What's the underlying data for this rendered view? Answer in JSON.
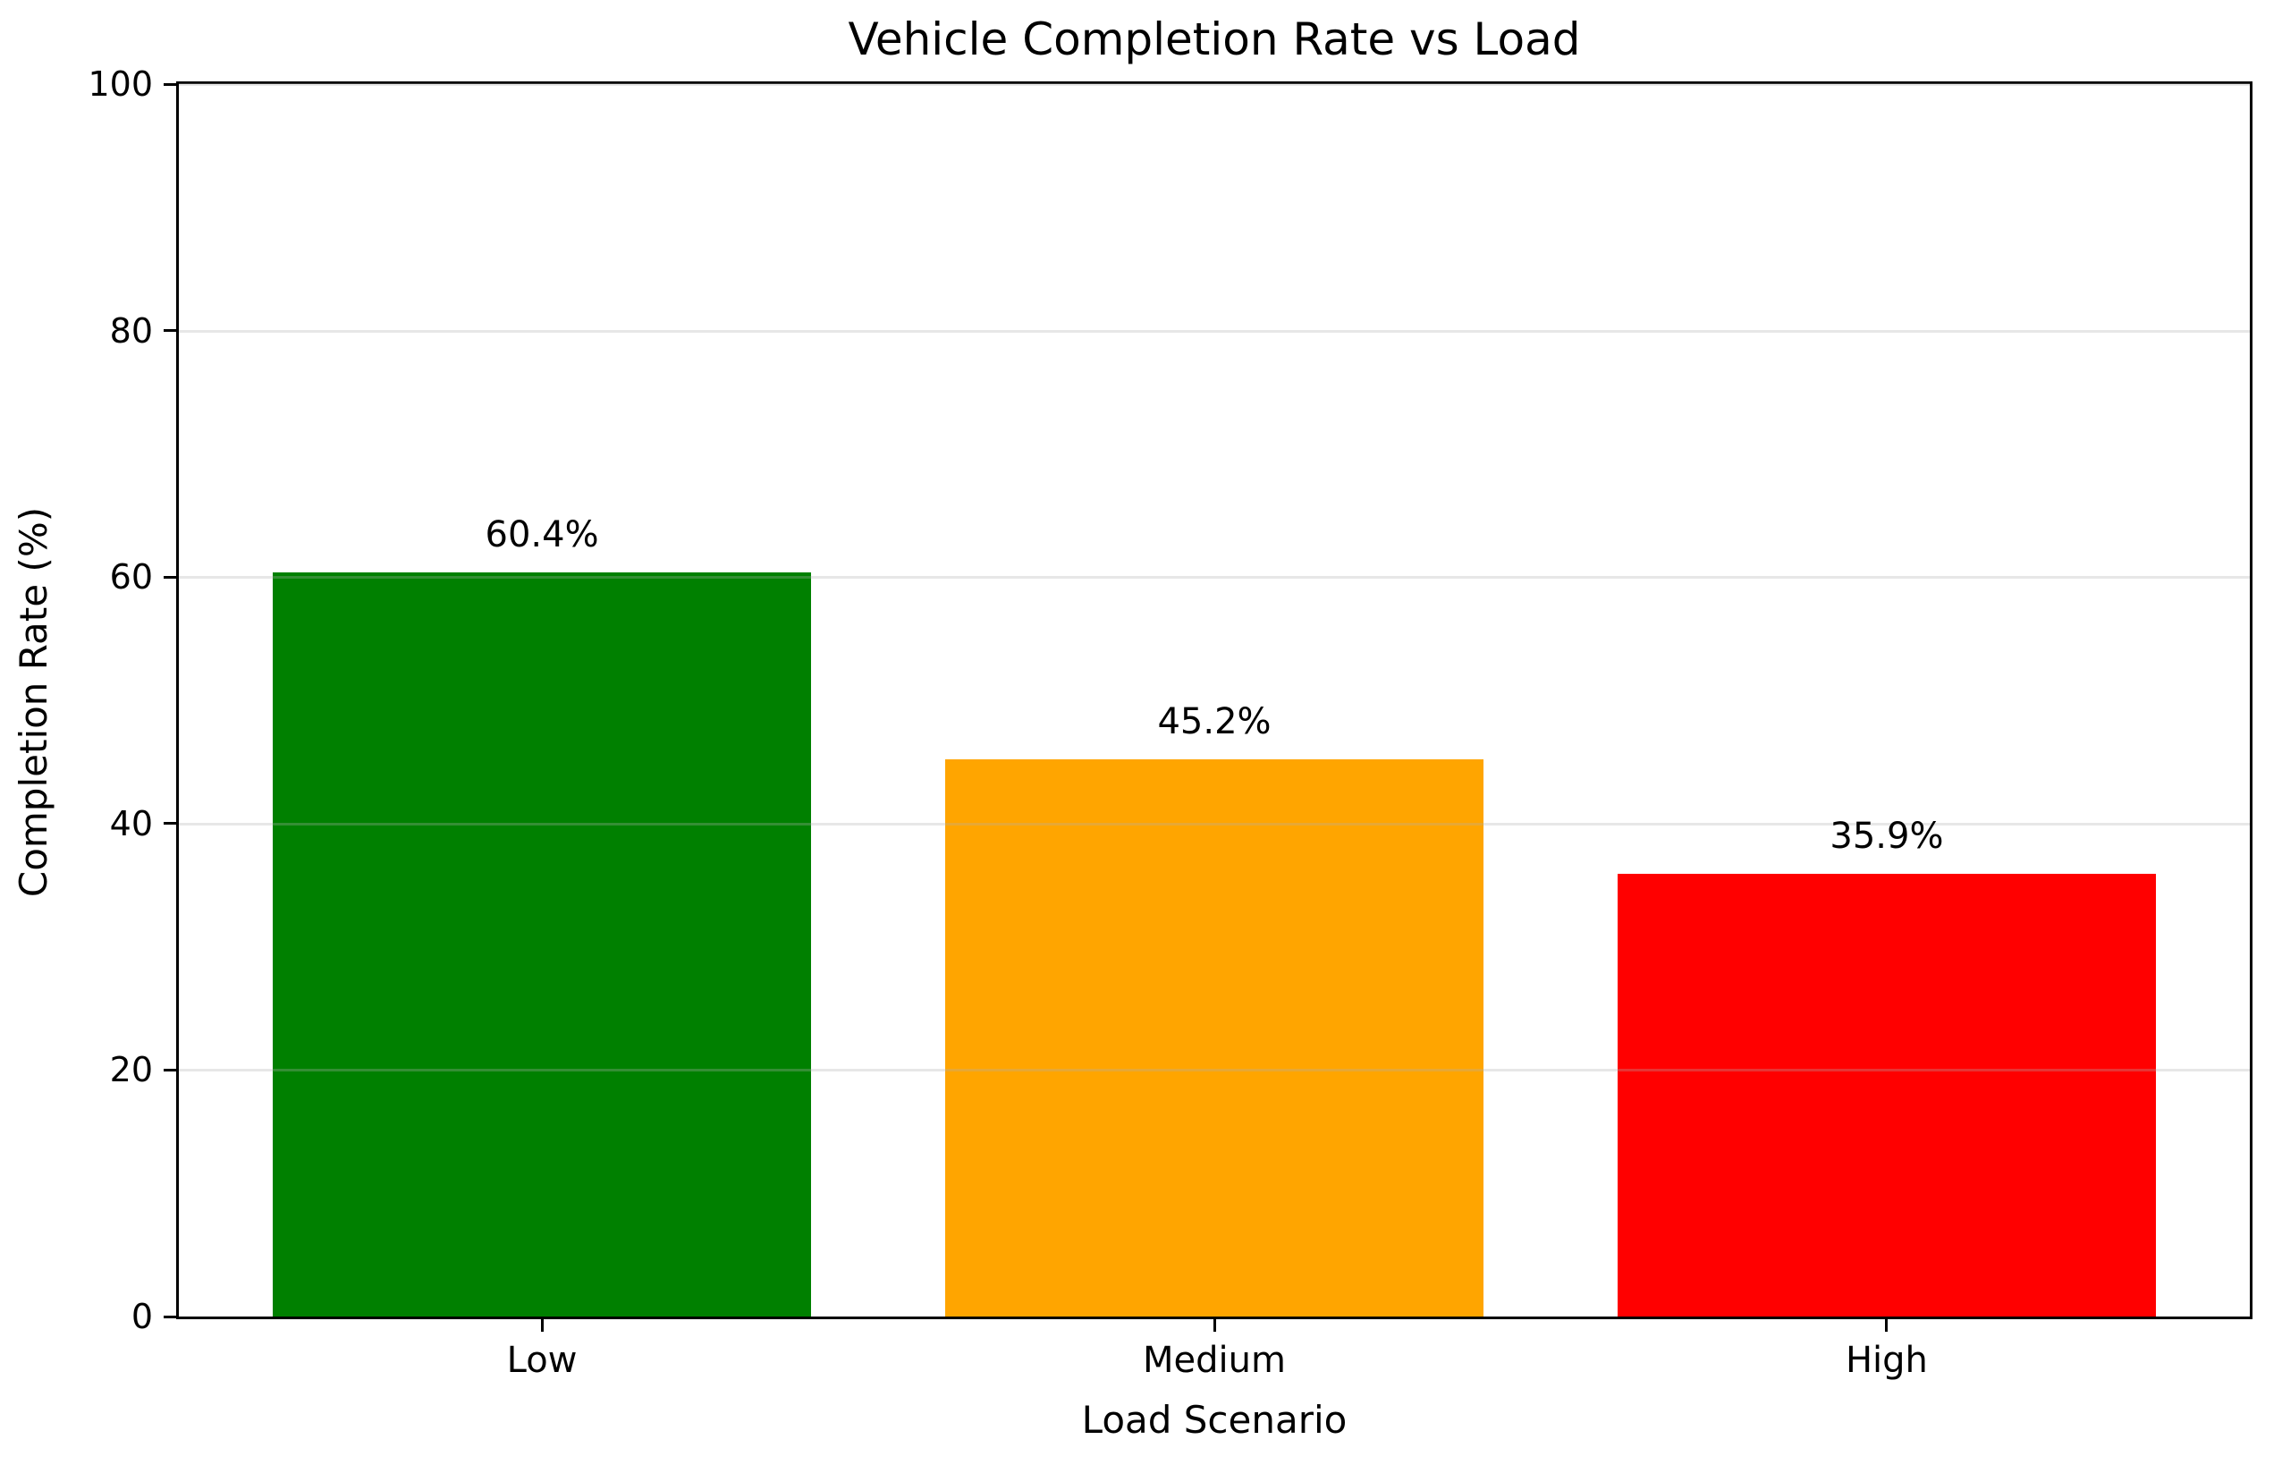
{
  "chart_data": {
    "type": "bar",
    "title": "Vehicle Completion Rate vs Load",
    "xlabel": "Load Scenario",
    "ylabel": "Completion Rate (%)",
    "categories": [
      "Low",
      "Medium",
      "High"
    ],
    "values": [
      60.4,
      45.2,
      35.9
    ],
    "bar_labels": [
      "60.4%",
      "45.2%",
      "35.9%"
    ],
    "bar_colors": [
      "#008000",
      "#FFA500",
      "#FF0000"
    ],
    "ylim": [
      0,
      100
    ],
    "yticks": [
      0,
      20,
      40,
      60,
      80,
      100
    ],
    "grid": {
      "axis": "y",
      "color": "#b0b0b0",
      "alpha": 0.3,
      "drawn_over_bars": true
    },
    "legend": "none",
    "spine_color": "#000000",
    "background_color": "#ffffff"
  }
}
